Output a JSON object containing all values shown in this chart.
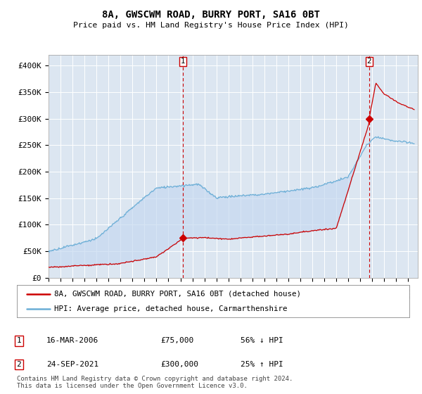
{
  "title1": "8A, GWSCWM ROAD, BURRY PORT, SA16 0BT",
  "title2": "Price paid vs. HM Land Registry's House Price Index (HPI)",
  "ylim": [
    0,
    420000
  ],
  "yticks": [
    0,
    50000,
    100000,
    150000,
    200000,
    250000,
    300000,
    350000,
    400000
  ],
  "ytick_labels": [
    "£0",
    "£50K",
    "£100K",
    "£150K",
    "£200K",
    "£250K",
    "£300K",
    "£350K",
    "£400K"
  ],
  "hpi_color": "#6baed6",
  "price_color": "#cc0000",
  "fill_color": "#c6d9f0",
  "marker1_year": 2006.21,
  "marker1_price": 75000,
  "marker2_year": 2021.73,
  "marker2_price": 300000,
  "legend1_text": "8A, GWSCWM ROAD, BURRY PORT, SA16 0BT (detached house)",
  "legend2_text": "HPI: Average price, detached house, Carmarthenshire",
  "note1_label": "1",
  "note1_date": "16-MAR-2006",
  "note1_price": "£75,000",
  "note1_hpi": "56% ↓ HPI",
  "note2_label": "2",
  "note2_date": "24-SEP-2021",
  "note2_price": "£300,000",
  "note2_hpi": "25% ↑ HPI",
  "footer": "Contains HM Land Registry data © Crown copyright and database right 2024.\nThis data is licensed under the Open Government Licence v3.0.",
  "bg_color": "#dce6f1",
  "grid_color": "#ffffff"
}
